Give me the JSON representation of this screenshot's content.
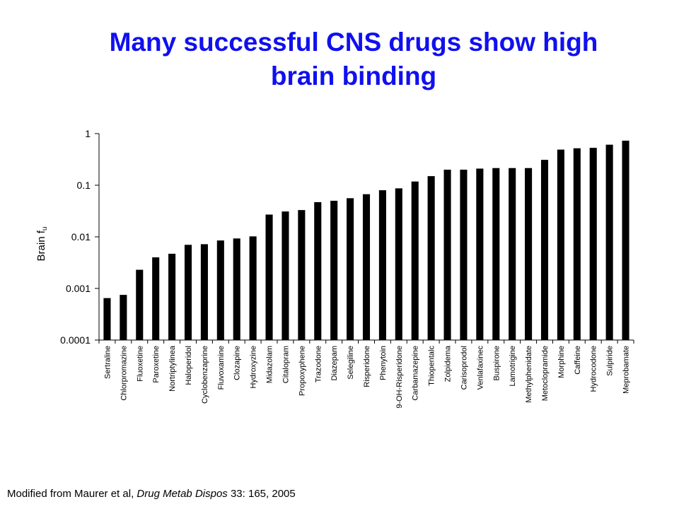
{
  "slide": {
    "title_line1": "Many successful CNS drugs show high",
    "title_line2": "brain binding",
    "footnote_prefix": "Modified from Maurer et al, ",
    "footnote_journal": "Drug Metab Dispos",
    "footnote_suffix": " 33: 165, 2005"
  },
  "colors": {
    "title": "#1010ee",
    "bar": "#000000",
    "axis": "#000000"
  },
  "chart_data": {
    "type": "bar",
    "title": "",
    "ylabel": "Brain f",
    "ylabel_subscript": "u",
    "xlabel": "",
    "yscale": "log",
    "ylim": [
      0.0001,
      1
    ],
    "yticks": [
      1,
      0.1,
      0.01,
      0.001,
      0.0001
    ],
    "ytick_labels": [
      "1",
      "0.1",
      "0.01",
      "0.001",
      "0.0001"
    ],
    "grid": false,
    "legend": "none",
    "categories": [
      "Sertraline",
      "Chlorpromazine",
      "Fluoxetine",
      "Paroxetine",
      "Nortriptylinea",
      "Haloperidol",
      "Cyclobenzaprine",
      "Fluvoxamine",
      "Clozapine",
      "Hydroxyzine",
      "Midazolam",
      "Citalopram",
      "Propoxyphene",
      "Trazodone",
      "Diazepam",
      "Selegiline",
      "Risperidone",
      "Phenytoin",
      "9-OH-Risperidone",
      "Carbamazepine",
      "Thiopentalc",
      "Zolpidema",
      "Carisoprodol",
      "Venlafaxinec",
      "Buspirone",
      "Lamotrigine",
      "Methylphenidate",
      "Metoclopramide",
      "Morphine",
      "Caffeine",
      "Hydrocodone",
      "Sulpiride",
      "Meprobamate"
    ],
    "values": [
      0.00065,
      0.00075,
      0.0023,
      0.004,
      0.0047,
      0.007,
      0.0072,
      0.0085,
      0.0093,
      0.0102,
      0.027,
      0.031,
      0.033,
      0.047,
      0.05,
      0.056,
      0.067,
      0.08,
      0.087,
      0.118,
      0.15,
      0.2,
      0.2,
      0.21,
      0.215,
      0.215,
      0.215,
      0.31,
      0.49,
      0.52,
      0.53,
      0.61,
      0.73
    ]
  }
}
